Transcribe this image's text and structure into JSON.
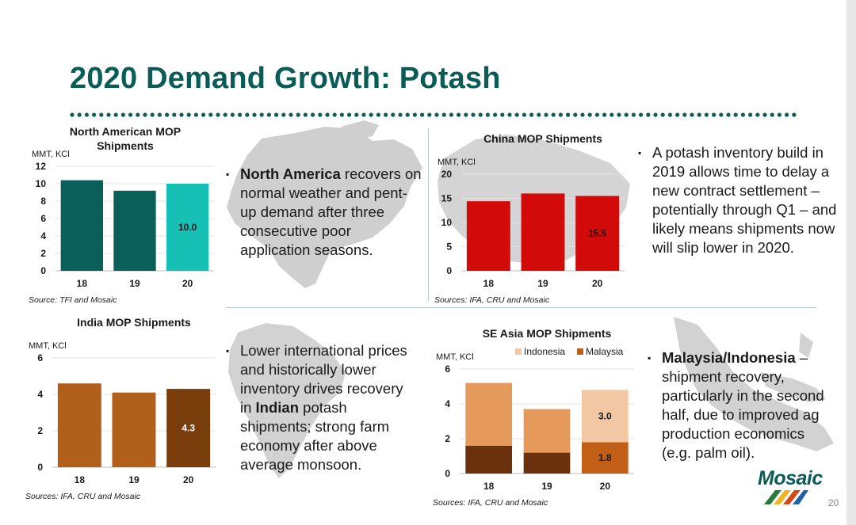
{
  "slide": {
    "title": "2020 Demand Growth: Potash",
    "page_number": "20",
    "logo_text": "Mosaic"
  },
  "colors": {
    "title": "#0a5c57",
    "na_dark": "#0b5f59",
    "na_highlight": "#16c0b5",
    "china": "#d20a0a",
    "india": "#b0601a",
    "india_highlight": "#7a3e0c",
    "indonesia": "#e59a5c",
    "indonesia_highlight": "#f2c7a4",
    "malaysia": "#6b310d",
    "malaysia_highlight": "#c25f17",
    "map": "#c8c8c8"
  },
  "bullets": {
    "north_america": {
      "bold": "North America",
      "rest": " recovers on normal weather and pent-up demand after three consecutive poor application seasons."
    },
    "china": {
      "text": "A potash inventory build in 2019 allows time to delay a new contract settlement – potentially through Q1 – and likely means shipments now will slip lower in 2020."
    },
    "india": {
      "pre": "Lower international prices and historically lower inventory drives recovery in ",
      "bold": "Indian",
      "post": " potash shipments; strong farm economy after above average monsoon."
    },
    "se_asia": {
      "bold": "Malaysia/Indonesia",
      "rest": " – shipment recovery, particularly in the second half, due to improved ag production economics (e.g. palm oil)."
    }
  },
  "chart_data": [
    {
      "id": "north_america",
      "type": "bar",
      "title": "North American MOP Shipments",
      "ylabel": "MMT, KCl",
      "categories": [
        "18",
        "19",
        "20"
      ],
      "values": [
        10.4,
        9.2,
        10.0
      ],
      "data_labels": [
        "",
        "",
        "10.0"
      ],
      "ylim": [
        0,
        12
      ],
      "yticks": [
        0,
        2,
        4,
        6,
        8,
        10,
        12
      ],
      "highlight_index": 2,
      "source": "Source: TFI and Mosaic"
    },
    {
      "id": "china",
      "type": "bar",
      "title": "China MOP Shipments",
      "ylabel": "MMT, KCl",
      "categories": [
        "18",
        "19",
        "20"
      ],
      "values": [
        14.4,
        16.0,
        15.5
      ],
      "data_labels": [
        "",
        "",
        "15.5"
      ],
      "ylim": [
        0,
        20
      ],
      "yticks": [
        0,
        5,
        10,
        15,
        20
      ],
      "source": "Sources: IFA, CRU and Mosaic"
    },
    {
      "id": "india",
      "type": "bar",
      "title": "India MOP Shipments",
      "ylabel": "MMT, KCl",
      "categories": [
        "18",
        "19",
        "20"
      ],
      "values": [
        4.6,
        4.1,
        4.3
      ],
      "data_labels": [
        "",
        "",
        "4.3"
      ],
      "ylim": [
        0,
        6
      ],
      "yticks": [
        0,
        2,
        4,
        6
      ],
      "highlight_index": 2,
      "source": "Sources: IFA, CRU and Mosaic"
    },
    {
      "id": "se_asia",
      "type": "bar",
      "stacked": true,
      "title": "SE Asia MOP Shipments",
      "ylabel": "MMT, KCl",
      "categories": [
        "18",
        "19",
        "20"
      ],
      "series": [
        {
          "name": "Malaysia",
          "values": [
            1.6,
            1.2,
            1.8
          ],
          "data_labels": [
            "",
            "",
            "1.8"
          ]
        },
        {
          "name": "Indonesia",
          "values": [
            3.6,
            2.5,
            3.0
          ],
          "data_labels": [
            "",
            "",
            "3.0"
          ]
        }
      ],
      "legend": [
        "Indonesia",
        "Malaysia"
      ],
      "ylim": [
        0,
        6
      ],
      "yticks": [
        0,
        2,
        4,
        6
      ],
      "highlight_index": 2,
      "source": "Sources: IFA, CRU and Mosaic"
    }
  ]
}
